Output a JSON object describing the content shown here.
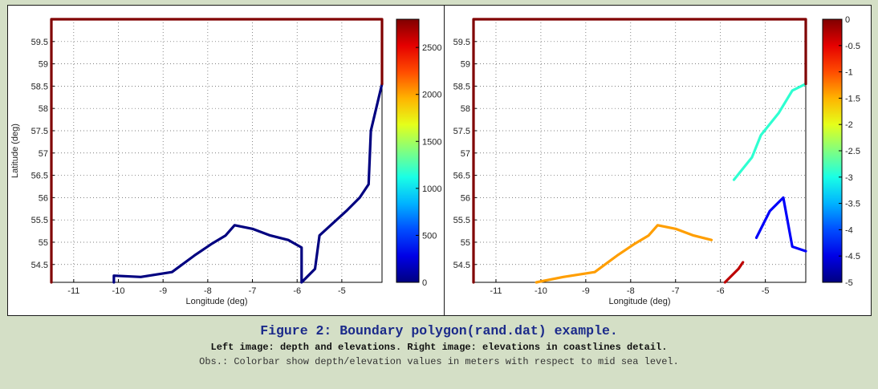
{
  "caption": {
    "title": "Figure 2: Boundary polygon(rand.dat) example.",
    "subtitle": "Left image: depth and elevations. Right image: elevations in coastlines detail.",
    "obs": "Obs.: Colorbar show depth/elevation values in meters with respect to mid sea level."
  },
  "chart_data": [
    {
      "type": "line",
      "xlabel": "Longitude (deg)",
      "ylabel": "Latitude (deg)",
      "xlim": [
        -11.5,
        -4.1
      ],
      "ylim": [
        54.1,
        60.0
      ],
      "xticks": [
        -11,
        -10,
        -9,
        -8,
        -7,
        -6,
        -5
      ],
      "yticks": [
        54.5,
        55,
        55.5,
        56,
        56.5,
        57,
        57.5,
        58,
        58.5,
        59,
        59.5
      ],
      "grid": true,
      "colormap": "jet",
      "colorbar": {
        "min": 0,
        "max": 2800,
        "ticks": [
          0,
          500,
          1000,
          1500,
          2000,
          2500
        ]
      },
      "series": [
        {
          "color_value": 0,
          "x": [
            -10.1,
            -10.1,
            -9.5,
            -8.8,
            -8.3,
            -7.9,
            -7.6,
            -7.4,
            -7.0,
            -6.6,
            -6.2,
            -5.9,
            -5.9,
            -5.6,
            -5.5,
            -4.9,
            -4.6,
            -4.4,
            -4.35,
            -4.1
          ],
          "y": [
            54.1,
            54.25,
            54.22,
            54.33,
            54.7,
            54.97,
            55.15,
            55.38,
            55.3,
            55.15,
            55.05,
            54.88,
            54.1,
            54.4,
            55.15,
            55.7,
            56.0,
            56.3,
            57.5,
            58.55
          ]
        },
        {
          "color_value": 2800,
          "x": [
            -11.5,
            -11.5,
            -4.1,
            -4.1
          ],
          "y": [
            54.1,
            60.0,
            60.0,
            58.55
          ]
        }
      ]
    },
    {
      "type": "line",
      "xlabel": "Longitude (deg)",
      "ylabel": "",
      "xlim": [
        -11.5,
        -4.1
      ],
      "ylim": [
        54.1,
        60.0
      ],
      "xticks": [
        -11,
        -10,
        -9,
        -8,
        -7,
        -6,
        -5
      ],
      "yticks": [
        54.5,
        55,
        55.5,
        56,
        56.5,
        57,
        57.5,
        58,
        58.5,
        59,
        59.5
      ],
      "grid": true,
      "colormap": "jet",
      "colorbar": {
        "min": -5,
        "max": 0,
        "ticks": [
          0,
          -0.5,
          -1,
          -1.5,
          -2,
          -2.5,
          -3,
          -3.5,
          -4,
          -4.5,
          -5
        ]
      },
      "series": [
        {
          "color_value": -1.4,
          "x": [
            -10.1,
            -9.5,
            -8.8,
            -8.3,
            -7.9,
            -7.6,
            -7.4,
            -7.0,
            -6.6,
            -6.2
          ],
          "y": [
            54.1,
            54.22,
            54.33,
            54.7,
            54.97,
            55.15,
            55.38,
            55.3,
            55.15,
            55.05
          ]
        },
        {
          "color_value": -0.3,
          "x": [
            -5.9,
            -5.6,
            -5.5
          ],
          "y": [
            54.1,
            54.4,
            54.55
          ]
        },
        {
          "color_value": -4.4,
          "x": [
            -5.2,
            -4.9,
            -4.6,
            -4.4,
            -4.1
          ],
          "y": [
            55.1,
            55.7,
            56.0,
            54.9,
            54.8
          ]
        },
        {
          "color_value": -2.9,
          "x": [
            -5.7,
            -5.3,
            -5.1,
            -4.7,
            -4.4,
            -4.1
          ],
          "y": [
            56.4,
            56.9,
            57.4,
            57.9,
            58.4,
            58.55
          ]
        },
        {
          "color_value": 0,
          "x": [
            -11.5,
            -11.5,
            -4.1,
            -4.1
          ],
          "y": [
            54.1,
            60.0,
            60.0,
            58.55
          ]
        }
      ]
    }
  ]
}
